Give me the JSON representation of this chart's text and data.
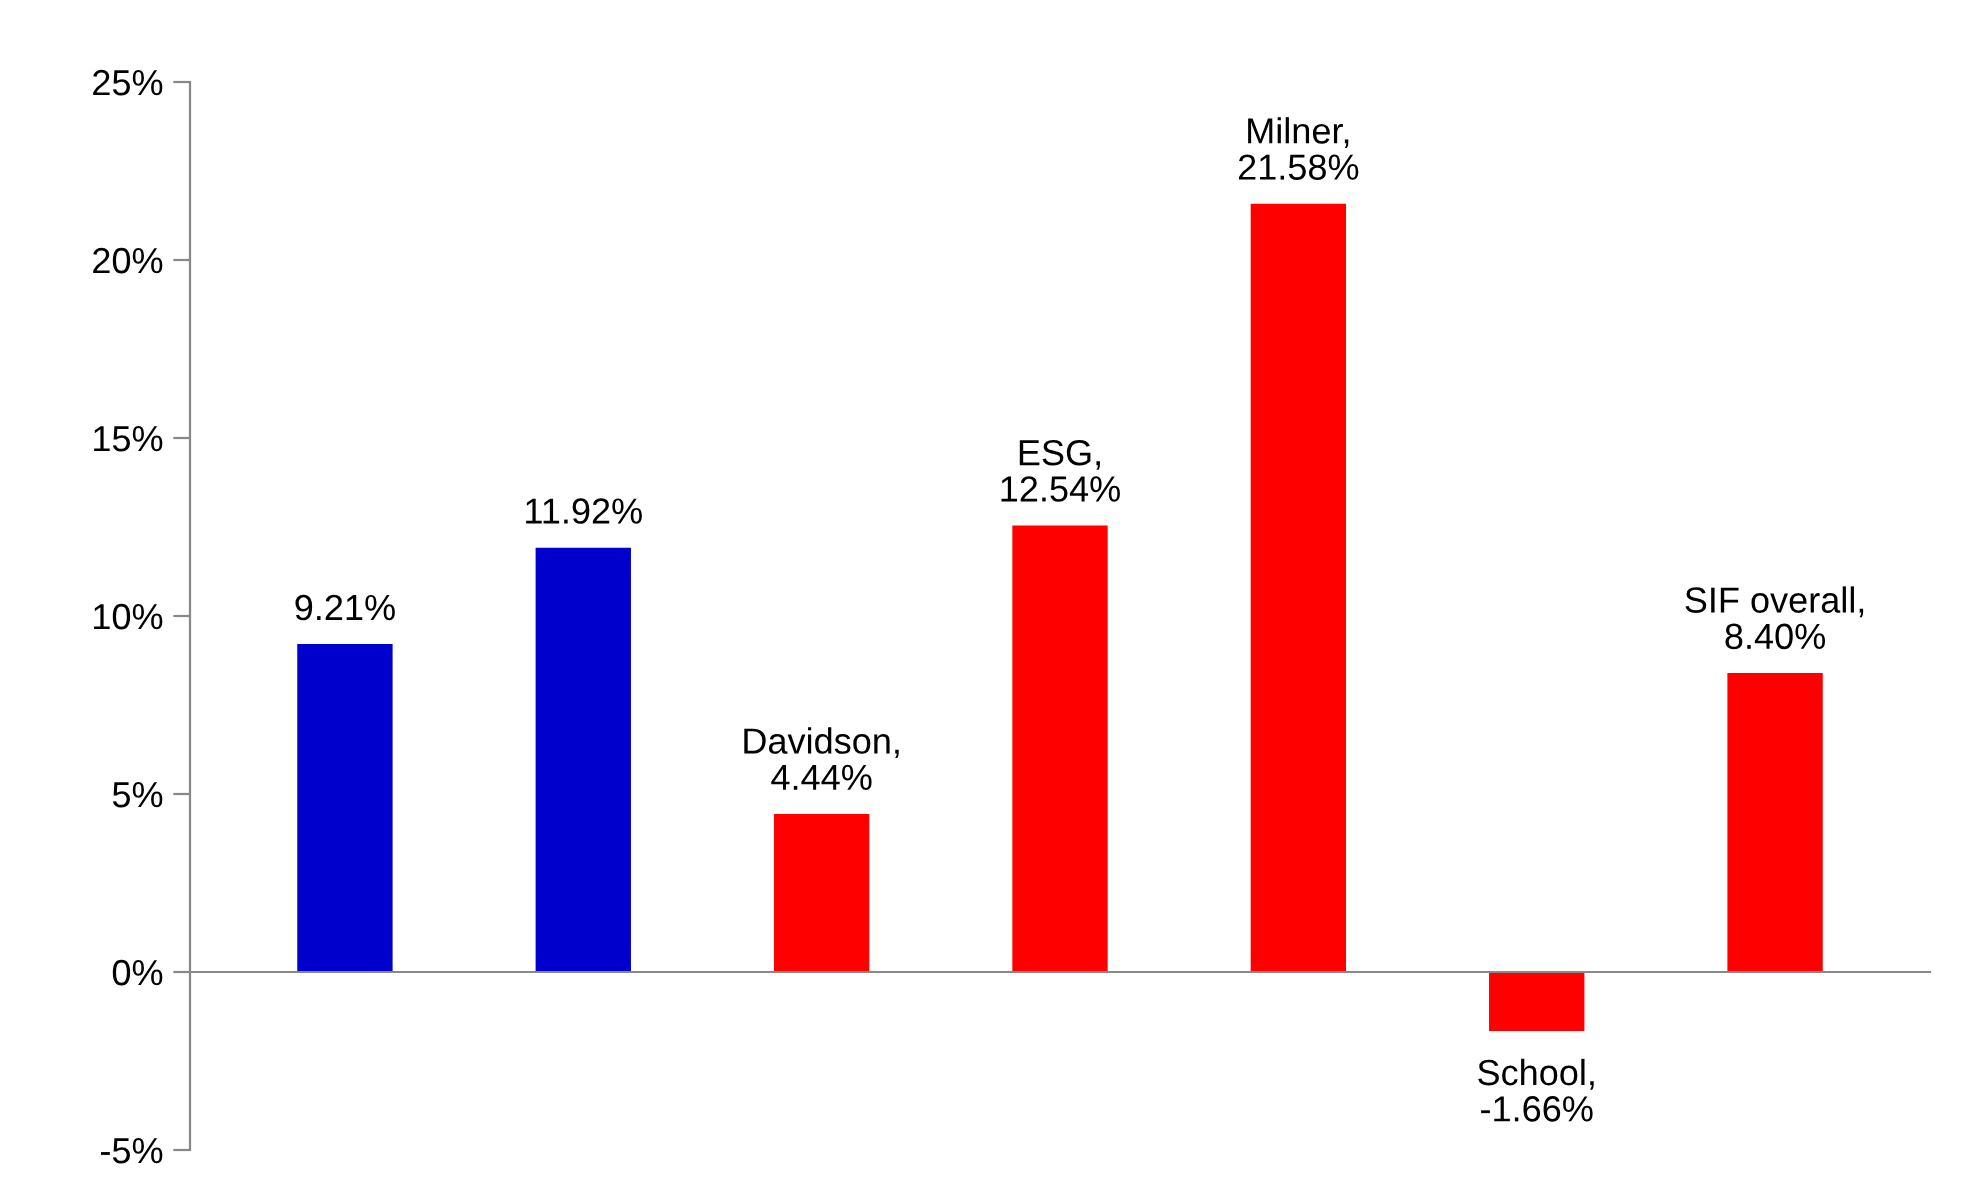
{
  "chart_data": {
    "type": "bar",
    "categories": [
      null,
      null,
      null,
      null,
      null,
      null,
      null
    ],
    "series": [
      {
        "color": "#0000cc",
        "values": [
          9.21,
          11.92,
          null,
          null,
          null,
          null,
          null
        ],
        "value_labels": [
          "9.21%",
          "11.92%",
          null,
          null,
          null,
          null,
          null
        ]
      },
      {
        "color": "#ff0000",
        "values": [
          null,
          null,
          4.44,
          12.54,
          21.58,
          -1.66,
          null
        ],
        "value_labels": [
          null,
          null,
          "Davidson,\n4.44%",
          "ESG,\n12.54%",
          "Milner,\n21.58%",
          "School,\n-1.66%",
          null
        ]
      },
      {
        "color": "#ff0000",
        "values": [
          null,
          null,
          null,
          null,
          null,
          null,
          8.4
        ],
        "value_labels": [
          null,
          null,
          null,
          null,
          null,
          null,
          "SIF overall,\n8.40%"
        ]
      }
    ],
    "ylim": [
      -5,
      25
    ],
    "yticks": [
      {
        "value": -5,
        "label": "-5%"
      },
      {
        "value": 0,
        "label": "0%"
      },
      {
        "value": 5,
        "label": "5%"
      },
      {
        "value": 10,
        "label": "10%"
      },
      {
        "value": 15,
        "label": "15%"
      },
      {
        "value": 20,
        "label": "20%"
      },
      {
        "value": 25,
        "label": "25%"
      }
    ],
    "legend": false
  }
}
